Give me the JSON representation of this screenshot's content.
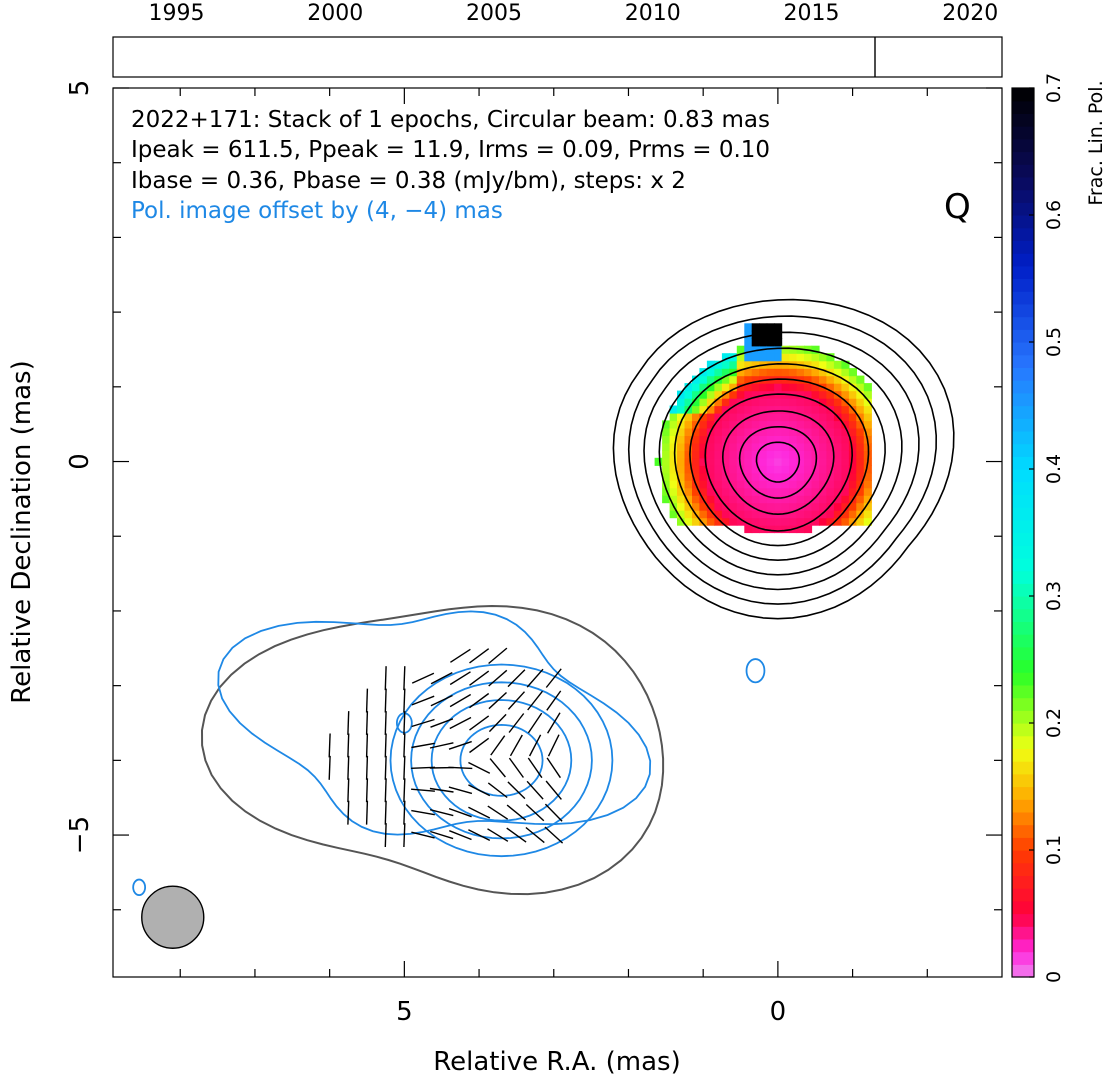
{
  "chart_data": {
    "type": "contour",
    "source": "2022+171",
    "annotation_lines": [
      "2022+171: Stack of 1 epochs, Circular beam: 0.83 mas",
      "Ipeak = 611.5, Ppeak = 11.9, Irms = 0.09, Prms = 0.10",
      "Ibase = 0.36, Pbase = 0.38 (mJy/bm), steps: x 2"
    ],
    "offset_note": "Pol. image offset by (4, −4) mas",
    "band_label": "Q",
    "xlabel": "Relative R.A. (mas)",
    "ylabel": "Relative Declination (mas)",
    "x_ticklabels": [
      "5",
      "0"
    ],
    "y_ticklabels": [
      "5",
      "0",
      "−5"
    ],
    "xlim": [
      8.9,
      -3.0
    ],
    "ylim": [
      -6.9,
      5.0
    ],
    "x_ticks": [
      5,
      0
    ],
    "y_ticks": [
      5,
      0,
      -5
    ],
    "beam": {
      "ra": 8.1,
      "dec": -6.1,
      "diameter_mas": 0.83
    },
    "colorbar": {
      "label": "Frac. Lin. Pol.",
      "range": [
        0,
        0.7
      ],
      "ticks": [
        "0",
        "0.1",
        "0.2",
        "0.3",
        "0.4",
        "0.5",
        "0.6",
        "0.7"
      ]
    },
    "timeline": {
      "years": [
        "1995",
        "2000",
        "2005",
        "2010",
        "2015",
        "2020"
      ],
      "range": [
        1993.0,
        2021.0
      ],
      "epochs": [
        2017.0
      ]
    },
    "total_intensity": {
      "peak_ra": 0.0,
      "peak_dec": 0.0,
      "contour_radii_mas": [
        0.28,
        0.5,
        0.72,
        0.95,
        1.15,
        1.35,
        1.55,
        1.75,
        1.95,
        2.15
      ]
    },
    "polarization": {
      "center_ra": 4.0,
      "center_dec": -4.0,
      "contour_radii_mas": [
        0.5,
        0.85,
        1.1,
        1.35
      ]
    },
    "colors": {
      "i_contours": "#000000",
      "p_contours": "#1e88e5",
      "pol_envelope": "#555555",
      "offset_text": "#1e88e5",
      "beam_fill": "#b0b0b0"
    }
  }
}
